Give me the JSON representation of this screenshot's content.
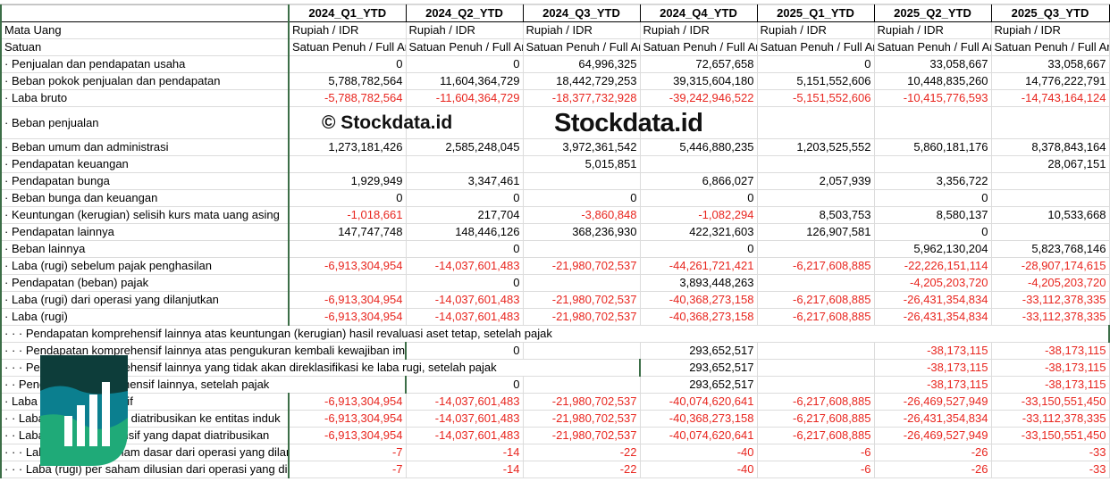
{
  "columns": [
    "2024_Q1_YTD",
    "2024_Q2_YTD",
    "2024_Q3_YTD",
    "2024_Q4_YTD",
    "2025_Q1_YTD",
    "2025_Q2_YTD",
    "2025_Q3_YTD"
  ],
  "meta_rows": [
    {
      "label": "Mata Uang",
      "values": [
        "Rupiah / IDR",
        "Rupiah / IDR",
        "Rupiah / IDR",
        "Rupiah / IDR",
        "Rupiah / IDR",
        "Rupiah / IDR",
        "Rupiah / IDR"
      ]
    },
    {
      "label": "Satuan",
      "values": [
        "Satuan Penuh / Full Amount",
        "Satuan Penuh / Full Amount",
        "Satuan Penuh / Full Amount",
        "Satuan Penuh / Full Amount",
        "Satuan Penuh / Full Amount",
        "Satuan Penuh / Full Amount",
        "Satuan Penuh / Full Amount"
      ]
    }
  ],
  "rows": [
    {
      "label": "· Penjualan dan pendapatan usaha",
      "values": [
        "0",
        "0",
        "64,996,325",
        "72,657,658",
        "0",
        "33,058,667",
        "33,058,667"
      ]
    },
    {
      "label": "· Beban pokok penjualan dan pendapatan",
      "values": [
        "5,788,782,564",
        "11,604,364,729",
        "18,442,729,253",
        "39,315,604,180",
        "5,151,552,606",
        "10,448,835,260",
        "14,776,222,791"
      ]
    },
    {
      "label": "· Laba bruto",
      "values": [
        "-5,788,782,564",
        "-11,604,364,729",
        "-18,377,732,928",
        "-39,242,946,522",
        "-5,151,552,606",
        "-10,415,776,593",
        "-14,743,164,124"
      ]
    },
    {
      "label": "· Beban penjualan",
      "values": [
        "",
        "",
        "",
        "",
        "",
        "",
        ""
      ]
    },
    {
      "label": "· Beban umum dan administrasi",
      "values": [
        "1,273,181,426",
        "2,585,248,045",
        "3,972,361,542",
        "5,446,880,235",
        "1,203,525,552",
        "5,860,181,176",
        "8,378,843,164"
      ]
    },
    {
      "label": "· Pendapatan keuangan",
      "values": [
        "",
        "",
        "5,015,851",
        "",
        "",
        "",
        "28,067,151"
      ]
    },
    {
      "label": "· Pendapatan bunga",
      "values": [
        "1,929,949",
        "3,347,461",
        "",
        "6,866,027",
        "2,057,939",
        "3,356,722",
        ""
      ]
    },
    {
      "label": "· Beban bunga dan keuangan",
      "values": [
        "0",
        "0",
        "0",
        "0",
        "",
        "0",
        ""
      ]
    },
    {
      "label": "· Keuntungan (kerugian) selisih kurs mata uang asing",
      "values": [
        "-1,018,661",
        "217,704",
        "-3,860,848",
        "-1,082,294",
        "8,503,753",
        "8,580,137",
        "10,533,668"
      ]
    },
    {
      "label": "· Pendapatan lainnya",
      "values": [
        "147,747,748",
        "148,446,126",
        "368,236,930",
        "422,321,603",
        "126,907,581",
        "0",
        ""
      ]
    },
    {
      "label": "· Beban lainnya",
      "values": [
        "",
        "0",
        "",
        "0",
        "",
        "5,962,130,204",
        "5,823,768,146"
      ]
    },
    {
      "label": "· Laba (rugi) sebelum pajak penghasilan",
      "values": [
        "-6,913,304,954",
        "-14,037,601,483",
        "-21,980,702,537",
        "-44,261,721,421",
        "-6,217,608,885",
        "-22,226,151,114",
        "-28,907,174,615"
      ]
    },
    {
      "label": "· Pendapatan (beban) pajak",
      "values": [
        "",
        "0",
        "",
        "3,893,448,263",
        "",
        "-4,205,203,720",
        "-4,205,203,720"
      ]
    },
    {
      "label": "· Laba (rugi) dari operasi yang dilanjutkan",
      "values": [
        "-6,913,304,954",
        "-14,037,601,483",
        "-21,980,702,537",
        "-40,368,273,158",
        "-6,217,608,885",
        "-26,431,354,834",
        "-33,112,378,335"
      ]
    },
    {
      "label": "· Laba (rugi)",
      "values": [
        "-6,913,304,954",
        "-14,037,601,483",
        "-21,980,702,537",
        "-40,368,273,158",
        "-6,217,608,885",
        "-26,431,354,834",
        "-33,112,378,335"
      ]
    },
    {
      "label": "· · · Pendapatan komprehensif lainnya atas keuntungan (kerugian) hasil revaluasi aset tetap, setelah pajak",
      "values": [
        "",
        "",
        "",
        "",
        "",
        "",
        ""
      ]
    },
    {
      "label": "· · · Pendapatan komprehensif lainnya atas pengukuran kembali kewajiban imbalan pasti, setelah pajak",
      "values": [
        "",
        "0",
        "",
        "293,652,517",
        "",
        "-38,173,115",
        "-38,173,115"
      ]
    },
    {
      "label": "· · · Pendapatan komprehensif lainnya yang tidak akan direklasifikasi ke laba rugi, setelah pajak",
      "values": [
        "",
        "",
        "",
        "293,652,517",
        "",
        "-38,173,115",
        "-38,173,115"
      ]
    },
    {
      "label": "· · Pendapatan komprehensif lainnya, setelah pajak",
      "values": [
        "",
        "0",
        "",
        "293,652,517",
        "",
        "-38,173,115",
        "-38,173,115"
      ]
    },
    {
      "label": "· Laba rugi komprehensif",
      "values": [
        "-6,913,304,954",
        "-14,037,601,483",
        "-21,980,702,537",
        "-40,074,620,641",
        "-6,217,608,885",
        "-26,469,527,949",
        "-33,150,551,450"
      ]
    },
    {
      "label": "· · Laba rugi yang dapat diatribusikan ke entitas induk",
      "values": [
        "-6,913,304,954",
        "-14,037,601,483",
        "-21,980,702,537",
        "-40,368,273,158",
        "-6,217,608,885",
        "-26,431,354,834",
        "-33,112,378,335"
      ]
    },
    {
      "label": "· · Laba rugi komprehensif yang dapat diatribusikan",
      "values": [
        "-6,913,304,954",
        "-14,037,601,483",
        "-21,980,702,537",
        "-40,074,620,641",
        "-6,217,608,885",
        "-26,469,527,949",
        "-33,150,551,450"
      ]
    },
    {
      "label": "· · · Laba (rugi) per saham dasar dari operasi yang dilanjutkan",
      "values": [
        "-7",
        "-14",
        "-22",
        "-40",
        "-6",
        "-26",
        "-33"
      ]
    },
    {
      "label": "· · · Laba (rugi) per saham dilusian dari operasi yang dilanjutkan",
      "values": [
        "-7",
        "-14",
        "-22",
        "-40",
        "-6",
        "-26",
        "-33"
      ]
    }
  ],
  "watermark": {
    "copyright": "© Stockdata.id",
    "brand": "Stockdata.id"
  },
  "colors": {
    "negative": "#e8261f",
    "freeze_line": "#3c6e47",
    "logo_dark": "#0d3d3a",
    "logo_mid": "#0b7f8f",
    "logo_light": "#1faa78"
  }
}
